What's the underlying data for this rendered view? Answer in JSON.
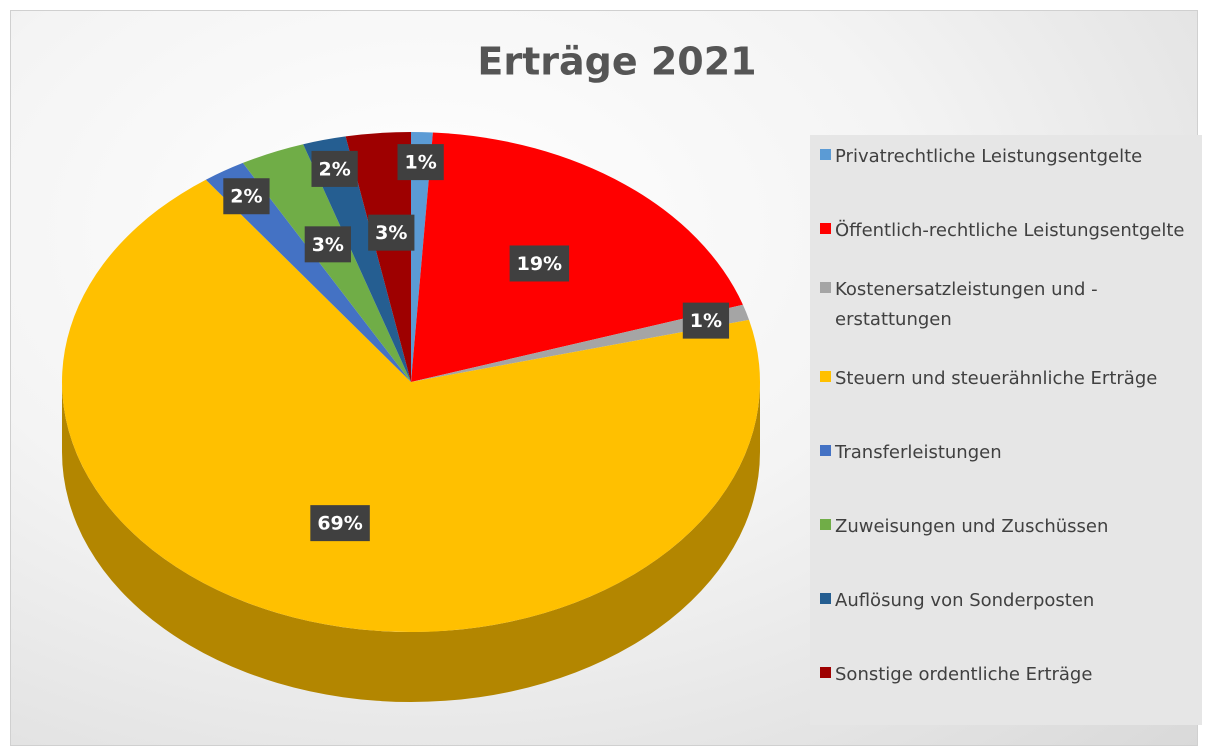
{
  "chart_data": {
    "type": "pie",
    "title": "Erträge 2021",
    "categories": [
      "Privatrechtliche Leistungsentgelte",
      "Öffentlich-rechtliche Leistungsentgelte",
      "Kostenersatzleistungen und -erstattungen",
      "Steuern und steuerähnliche Erträge",
      "Transferleistungen",
      "Zuweisungen und Zuschüssen",
      "Auflösung von Sonderposten",
      "Sonstige ordentliche Erträge"
    ],
    "values": [
      1,
      19,
      1,
      69,
      2,
      3,
      2,
      3
    ],
    "value_labels": [
      "1%",
      "19%",
      "1%",
      "69%",
      "2%",
      "3%",
      "2%",
      "3%"
    ],
    "colors": [
      "#5b9bd5",
      "#ff0000",
      "#a5a5a5",
      "#ffc000",
      "#4472c4",
      "#70ad47",
      "#255e91",
      "#9e0000"
    ],
    "legend": "right"
  }
}
